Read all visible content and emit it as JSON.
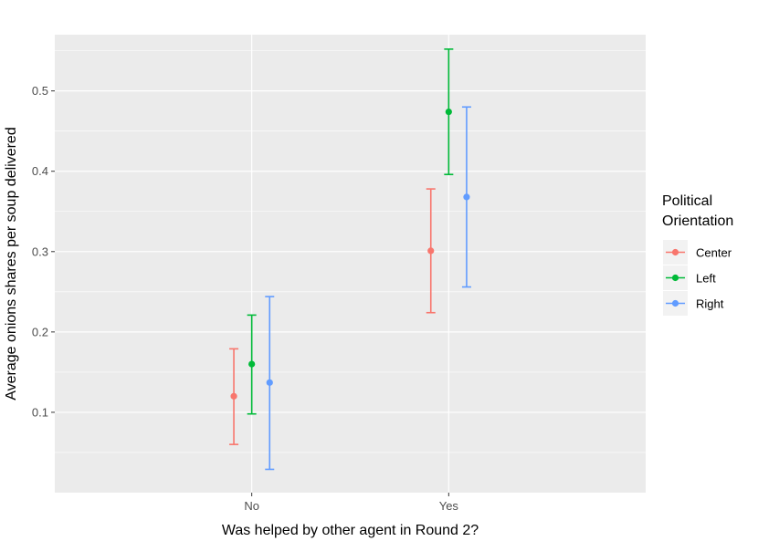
{
  "chart_data": {
    "type": "scatter",
    "title": "",
    "xlabel": "Was helped by other agent in Round 2?",
    "ylabel": "Average onions shares per soup delivered",
    "categories": [
      "No",
      "Yes"
    ],
    "ylim": [
      0.0,
      0.57
    ],
    "yticks": [
      0.1,
      0.2,
      0.3,
      0.4,
      0.5
    ],
    "grid": true,
    "legend": {
      "title_lines": [
        "Political",
        "Orientation"
      ],
      "placement": "right"
    },
    "series": [
      {
        "name": "Center",
        "color": "#F8766D",
        "values": [
          0.12,
          0.301
        ],
        "lower": [
          0.06,
          0.224
        ],
        "upper": [
          0.179,
          0.378
        ]
      },
      {
        "name": "Left",
        "color": "#00BA38",
        "values": [
          0.16,
          0.474
        ],
        "lower": [
          0.098,
          0.396
        ],
        "upper": [
          0.221,
          0.552
        ]
      },
      {
        "name": "Right",
        "color": "#619CFF",
        "values": [
          0.137,
          0.368
        ],
        "lower": [
          0.029,
          0.256
        ],
        "upper": [
          0.244,
          0.48
        ]
      }
    ]
  }
}
